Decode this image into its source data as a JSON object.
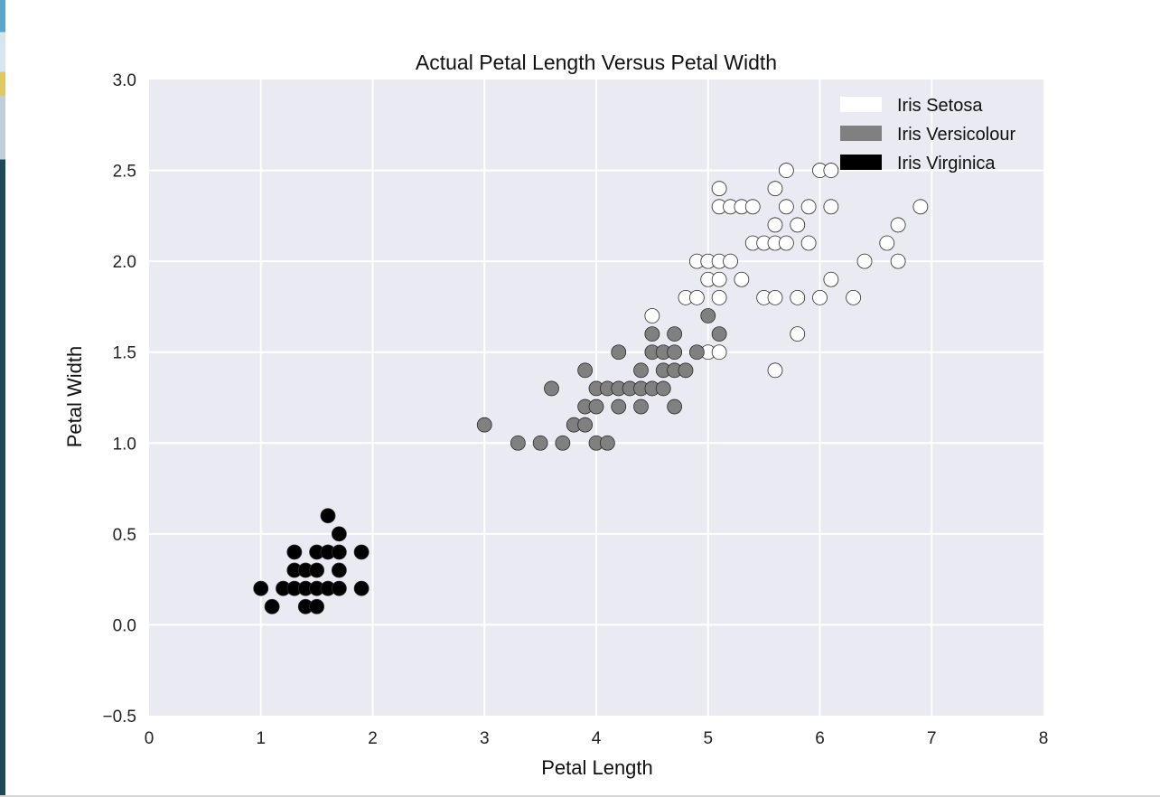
{
  "chart_data": {
    "type": "scatter",
    "title": "Actual Petal Length Versus Petal Width",
    "xlabel": "Petal Length",
    "ylabel": "Petal Width",
    "xlim": [
      0,
      8
    ],
    "ylim": [
      -0.5,
      3.0
    ],
    "xticks": [
      0,
      1,
      2,
      3,
      4,
      5,
      6,
      7,
      8
    ],
    "xtick_labels": [
      "0",
      "1",
      "2",
      "3",
      "4",
      "5",
      "6",
      "7",
      "8"
    ],
    "yticks": [
      -0.5,
      0.0,
      0.5,
      1.0,
      1.5,
      2.0,
      2.5,
      3.0
    ],
    "ytick_labels": [
      "−0.5",
      "0.0",
      "0.5",
      "1.0",
      "1.5",
      "2.0",
      "2.5",
      "3.0"
    ],
    "grid": true,
    "legend_position": "top-right",
    "background_color": "#eaeaf2",
    "series": [
      {
        "name": "Iris Setosa",
        "color": "#ffffff",
        "points": [
          [
            4.5,
            1.7
          ],
          [
            4.8,
            1.8
          ],
          [
            4.9,
            1.8
          ],
          [
            4.9,
            2.0
          ],
          [
            5.0,
            2.0
          ],
          [
            5.0,
            1.9
          ],
          [
            5.0,
            1.5
          ],
          [
            5.1,
            1.5
          ],
          [
            5.1,
            1.8
          ],
          [
            5.1,
            1.9
          ],
          [
            5.1,
            2.0
          ],
          [
            5.1,
            2.3
          ],
          [
            5.1,
            2.4
          ],
          [
            5.2,
            2.0
          ],
          [
            5.2,
            2.3
          ],
          [
            5.3,
            1.9
          ],
          [
            5.3,
            2.3
          ],
          [
            5.4,
            2.1
          ],
          [
            5.4,
            2.3
          ],
          [
            5.5,
            1.8
          ],
          [
            5.5,
            2.1
          ],
          [
            5.6,
            1.4
          ],
          [
            5.6,
            1.8
          ],
          [
            5.6,
            2.1
          ],
          [
            5.6,
            2.2
          ],
          [
            5.6,
            2.4
          ],
          [
            5.7,
            2.1
          ],
          [
            5.7,
            2.3
          ],
          [
            5.7,
            2.5
          ],
          [
            5.8,
            1.6
          ],
          [
            5.8,
            1.8
          ],
          [
            5.8,
            2.2
          ],
          [
            5.9,
            2.1
          ],
          [
            5.9,
            2.3
          ],
          [
            6.0,
            1.8
          ],
          [
            6.0,
            2.5
          ],
          [
            6.1,
            1.9
          ],
          [
            6.1,
            2.3
          ],
          [
            6.1,
            2.5
          ],
          [
            6.3,
            1.8
          ],
          [
            6.4,
            2.0
          ],
          [
            6.6,
            2.1
          ],
          [
            6.7,
            2.0
          ],
          [
            6.7,
            2.2
          ],
          [
            6.9,
            2.3
          ]
        ]
      },
      {
        "name": "Iris Versicolour",
        "color": "#808080",
        "points": [
          [
            3.0,
            1.1
          ],
          [
            3.3,
            1.0
          ],
          [
            3.5,
            1.0
          ],
          [
            3.6,
            1.3
          ],
          [
            3.7,
            1.0
          ],
          [
            3.8,
            1.1
          ],
          [
            3.9,
            1.1
          ],
          [
            3.9,
            1.2
          ],
          [
            3.9,
            1.4
          ],
          [
            4.0,
            1.0
          ],
          [
            4.0,
            1.2
          ],
          [
            4.0,
            1.3
          ],
          [
            4.1,
            1.0
          ],
          [
            4.1,
            1.3
          ],
          [
            4.2,
            1.2
          ],
          [
            4.2,
            1.3
          ],
          [
            4.2,
            1.5
          ],
          [
            4.3,
            1.3
          ],
          [
            4.4,
            1.2
          ],
          [
            4.4,
            1.3
          ],
          [
            4.4,
            1.4
          ],
          [
            4.5,
            1.3
          ],
          [
            4.5,
            1.5
          ],
          [
            4.5,
            1.6
          ],
          [
            4.6,
            1.3
          ],
          [
            4.6,
            1.4
          ],
          [
            4.6,
            1.5
          ],
          [
            4.7,
            1.2
          ],
          [
            4.7,
            1.4
          ],
          [
            4.7,
            1.5
          ],
          [
            4.7,
            1.6
          ],
          [
            4.8,
            1.4
          ],
          [
            4.9,
            1.5
          ],
          [
            5.0,
            1.7
          ],
          [
            5.1,
            1.6
          ]
        ]
      },
      {
        "name": "Iris Virginica",
        "color": "#000000",
        "points": [
          [
            1.0,
            0.2
          ],
          [
            1.1,
            0.1
          ],
          [
            1.2,
            0.2
          ],
          [
            1.3,
            0.2
          ],
          [
            1.3,
            0.3
          ],
          [
            1.3,
            0.4
          ],
          [
            1.4,
            0.1
          ],
          [
            1.4,
            0.2
          ],
          [
            1.4,
            0.3
          ],
          [
            1.5,
            0.1
          ],
          [
            1.5,
            0.2
          ],
          [
            1.5,
            0.3
          ],
          [
            1.5,
            0.4
          ],
          [
            1.6,
            0.2
          ],
          [
            1.6,
            0.4
          ],
          [
            1.6,
            0.6
          ],
          [
            1.7,
            0.2
          ],
          [
            1.7,
            0.3
          ],
          [
            1.7,
            0.4
          ],
          [
            1.7,
            0.5
          ],
          [
            1.9,
            0.2
          ],
          [
            1.9,
            0.4
          ]
        ]
      }
    ]
  }
}
